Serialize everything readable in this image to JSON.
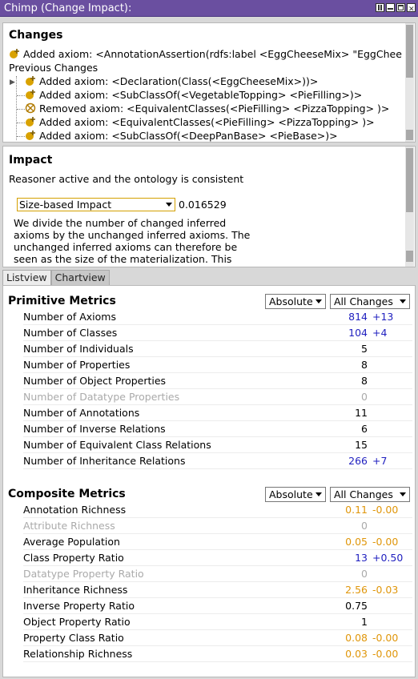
{
  "window": {
    "title": "Chimp (Change Impact):"
  },
  "changes": {
    "heading": "Changes",
    "current": "Added axiom: <AnnotationAssertion(rdfs:label <EggCheeseMix> \"EggChee",
    "previous_label": "Previous Changes",
    "previous": [
      {
        "kind": "added",
        "text": "Added axiom: <Declaration(Class(<EggCheeseMix>))>"
      },
      {
        "kind": "added",
        "text": "Added axiom: <SubClassOf(<VegetableTopping> <PieFilling>)>"
      },
      {
        "kind": "removed",
        "text": "Removed axiom: <EquivalentClasses(<PieFilling> <PizzaTopping> )>"
      },
      {
        "kind": "added",
        "text": "Added axiom: <EquivalentClasses(<PieFilling> <PizzaTopping> )>"
      },
      {
        "kind": "added",
        "text": "Added axiom: <SubClassOf(<DeepPanBase> <PieBase>)>"
      }
    ]
  },
  "impact": {
    "heading": "Impact",
    "status": "Reasoner active and the ontology is consistent",
    "selected": "Size-based Impact",
    "value": "0.016529",
    "description_lines": [
      "We divide the number of changed inferred",
      "axioms by the unchanged inferred axioms. The",
      "unchanged inferred axioms can therefore be",
      "seen as the size of the materialization. This"
    ]
  },
  "tabs": [
    "Listview",
    "Chartview"
  ],
  "primitive": {
    "heading": "Primitive Metrics",
    "mode": "Absolute",
    "filter": "All Changes",
    "rows": [
      {
        "label": "Number of Axioms",
        "value": "814",
        "delta": "+13",
        "color": "#1f1fbf",
        "enabled": true
      },
      {
        "label": "Number of Classes",
        "value": "104",
        "delta": "+4",
        "color": "#1f1fbf",
        "enabled": true
      },
      {
        "label": "Number of Individuals",
        "value": "5",
        "delta": "",
        "color": "#000000",
        "enabled": true
      },
      {
        "label": "Number of Properties",
        "value": "8",
        "delta": "",
        "color": "#000000",
        "enabled": true
      },
      {
        "label": "Number of Object Properties",
        "value": "8",
        "delta": "",
        "color": "#000000",
        "enabled": true
      },
      {
        "label": "Number of Datatype Properties",
        "value": "0",
        "delta": "",
        "color": "#aaaaaa",
        "enabled": false
      },
      {
        "label": "Number of Annotations",
        "value": "11",
        "delta": "",
        "color": "#000000",
        "enabled": true
      },
      {
        "label": "Number of Inverse Relations",
        "value": "6",
        "delta": "",
        "color": "#000000",
        "enabled": true
      },
      {
        "label": "Number of Equivalent Class Relations",
        "value": "15",
        "delta": "",
        "color": "#000000",
        "enabled": true
      },
      {
        "label": "Number of Inheritance Relations",
        "value": "266",
        "delta": "+7",
        "color": "#1f1fbf",
        "enabled": true
      }
    ]
  },
  "composite": {
    "heading": "Composite Metrics",
    "mode": "Absolute",
    "filter": "All Changes",
    "rows": [
      {
        "label": "Annotation Richness",
        "value": "0.11",
        "delta": "-0.00",
        "color": "#e0960a",
        "enabled": true
      },
      {
        "label": "Attribute Richness",
        "value": "0",
        "delta": "",
        "color": "#aaaaaa",
        "enabled": false
      },
      {
        "label": "Average Population",
        "value": "0.05",
        "delta": "-0.00",
        "color": "#e0960a",
        "enabled": true
      },
      {
        "label": "Class Property Ratio",
        "value": "13",
        "delta": "+0.50",
        "color": "#1f1fbf",
        "enabled": true
      },
      {
        "label": "Datatype Property Ratio",
        "value": "0",
        "delta": "",
        "color": "#aaaaaa",
        "enabled": false
      },
      {
        "label": "Inheritance Richness",
        "value": "2.56",
        "delta": "-0.03",
        "color": "#e0960a",
        "enabled": true
      },
      {
        "label": "Inverse Property Ratio",
        "value": "0.75",
        "delta": "",
        "color": "#000000",
        "enabled": true
      },
      {
        "label": "Object Property Ratio",
        "value": "1",
        "delta": "",
        "color": "#000000",
        "enabled": true
      },
      {
        "label": "Property Class Ratio",
        "value": "0.08",
        "delta": "-0.00",
        "color": "#e0960a",
        "enabled": true
      },
      {
        "label": "Relationship Richness",
        "value": "0.03",
        "delta": "-0.00",
        "color": "#e0960a",
        "enabled": true
      }
    ]
  },
  "icons": {
    "added": "added-axiom-icon",
    "removed": "removed-axiom-icon"
  },
  "colors": {
    "title_bar": "#6a4fa0",
    "added_icon": "#d9a200",
    "selection_border": "#d4a000"
  }
}
